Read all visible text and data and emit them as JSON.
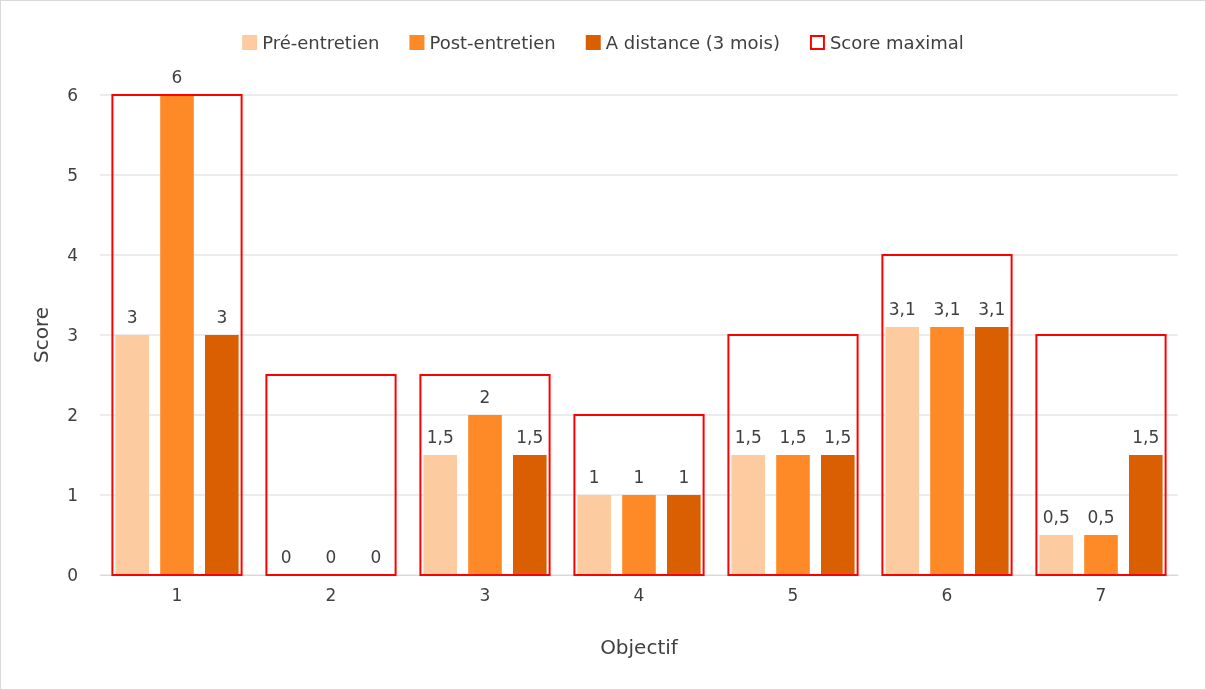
{
  "chart_data": {
    "type": "bar",
    "xlabel": "Objectif",
    "ylabel": "Score",
    "categories": [
      "1",
      "2",
      "3",
      "4",
      "5",
      "6",
      "7"
    ],
    "ylim": [
      0,
      6
    ],
    "yticks": [
      0,
      1,
      2,
      3,
      4,
      5,
      6
    ],
    "grid": "y",
    "legend": "top",
    "series": [
      {
        "name": "Pré-entretien",
        "color": "#fdcba0",
        "values": [
          3,
          0,
          1.5,
          1,
          1.5,
          3.1,
          0.5
        ],
        "value_labels": [
          "3",
          "0",
          "1,5",
          "1",
          "1,5",
          "3,1",
          "0,5"
        ]
      },
      {
        "name": "Post-entretien",
        "color": "#fd8a27",
        "values": [
          6,
          0,
          2,
          1,
          1.5,
          3.1,
          0.5
        ],
        "value_labels": [
          "6",
          "0",
          "2",
          "1",
          "1,5",
          "3,1",
          "0,5"
        ]
      },
      {
        "name": "A distance (3 mois)",
        "color": "#d95f02",
        "values": [
          3,
          0,
          1.5,
          1,
          1.5,
          3.1,
          1.5
        ],
        "value_labels": [
          "3",
          "0",
          "1,5",
          "1",
          "1,5",
          "3,1",
          "1,5"
        ]
      },
      {
        "name": "Score maximal",
        "type": "bar",
        "color": "#ff0000",
        "values": [
          6,
          2.5,
          2.5,
          2,
          3,
          4,
          3
        ]
      }
    ]
  }
}
